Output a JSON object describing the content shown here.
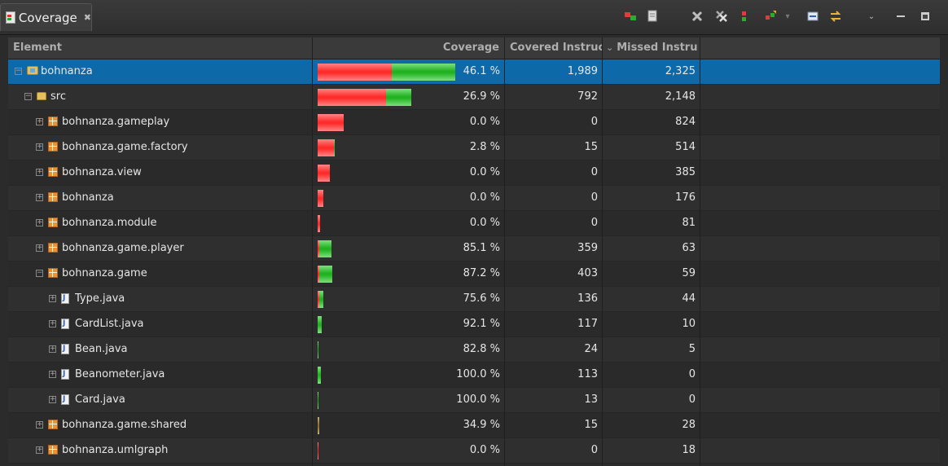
{
  "view": {
    "title": "Coverage",
    "close_glyph": "✖"
  },
  "toolbar": {
    "icons": [
      "relaunch-icon",
      "export-icon",
      "remove-icon",
      "remove-all-icon",
      "merge-icon",
      "select-session-icon",
      "collapse-all-icon",
      "link-icon",
      "view-menu-icon",
      "minimize-icon",
      "maximize-icon"
    ]
  },
  "columns": {
    "element": "Element",
    "coverage": "Coverage",
    "covered": "Covered Instruc",
    "missed": "Missed Instru",
    "sort_indicator": "⌄"
  },
  "colors": {
    "covered": "#21b221",
    "missed": "#ff2b2b",
    "selection": "#0e69a9"
  },
  "rows": [
    {
      "name": "bohnanza",
      "type": "project",
      "depth": 0,
      "expanded": true,
      "coverage": "46.1 %",
      "covered": "1,989",
      "missed": "2,325",
      "covered_n": 1989,
      "missed_n": 2325,
      "selected": true
    },
    {
      "name": "src",
      "type": "folder",
      "depth": 1,
      "expanded": true,
      "coverage": "26.9 %",
      "covered": "792",
      "missed": "2,148",
      "covered_n": 792,
      "missed_n": 2148
    },
    {
      "name": "bohnanza.gameplay",
      "type": "package",
      "depth": 2,
      "expanded": false,
      "coverage": "0.0 %",
      "covered": "0",
      "missed": "824",
      "covered_n": 0,
      "missed_n": 824
    },
    {
      "name": "bohnanza.game.factory",
      "type": "package",
      "depth": 2,
      "expanded": false,
      "coverage": "2.8 %",
      "covered": "15",
      "missed": "514",
      "covered_n": 15,
      "missed_n": 514
    },
    {
      "name": "bohnanza.view",
      "type": "package",
      "depth": 2,
      "expanded": false,
      "coverage": "0.0 %",
      "covered": "0",
      "missed": "385",
      "covered_n": 0,
      "missed_n": 385
    },
    {
      "name": "bohnanza",
      "type": "package",
      "depth": 2,
      "expanded": false,
      "coverage": "0.0 %",
      "covered": "0",
      "missed": "176",
      "covered_n": 0,
      "missed_n": 176
    },
    {
      "name": "bohnanza.module",
      "type": "package",
      "depth": 2,
      "expanded": false,
      "coverage": "0.0 %",
      "covered": "0",
      "missed": "81",
      "covered_n": 0,
      "missed_n": 81
    },
    {
      "name": "bohnanza.game.player",
      "type": "package",
      "depth": 2,
      "expanded": false,
      "coverage": "85.1 %",
      "covered": "359",
      "missed": "63",
      "covered_n": 359,
      "missed_n": 63
    },
    {
      "name": "bohnanza.game",
      "type": "package",
      "depth": 2,
      "expanded": true,
      "coverage": "87.2 %",
      "covered": "403",
      "missed": "59",
      "covered_n": 403,
      "missed_n": 59
    },
    {
      "name": "Type.java",
      "type": "java",
      "depth": 3,
      "expanded": false,
      "coverage": "75.6 %",
      "covered": "136",
      "missed": "44",
      "covered_n": 136,
      "missed_n": 44
    },
    {
      "name": "CardList.java",
      "type": "java",
      "depth": 3,
      "expanded": false,
      "coverage": "92.1 %",
      "covered": "117",
      "missed": "10",
      "covered_n": 117,
      "missed_n": 10
    },
    {
      "name": "Bean.java",
      "type": "java",
      "depth": 3,
      "expanded": false,
      "coverage": "82.8 %",
      "covered": "24",
      "missed": "5",
      "covered_n": 24,
      "missed_n": 5
    },
    {
      "name": "Beanometer.java",
      "type": "java",
      "depth": 3,
      "expanded": false,
      "coverage": "100.0 %",
      "covered": "113",
      "missed": "0",
      "covered_n": 113,
      "missed_n": 0
    },
    {
      "name": "Card.java",
      "type": "java",
      "depth": 3,
      "expanded": false,
      "coverage": "100.0 %",
      "covered": "13",
      "missed": "0",
      "covered_n": 13,
      "missed_n": 0
    },
    {
      "name": "bohnanza.game.shared",
      "type": "package",
      "depth": 2,
      "expanded": false,
      "coverage": "34.9 %",
      "covered": "15",
      "missed": "28",
      "covered_n": 15,
      "missed_n": 28
    },
    {
      "name": "bohnanza.umlgraph",
      "type": "package",
      "depth": 2,
      "expanded": false,
      "coverage": "0.0 %",
      "covered": "0",
      "missed": "18",
      "covered_n": 0,
      "missed_n": 18
    }
  ]
}
